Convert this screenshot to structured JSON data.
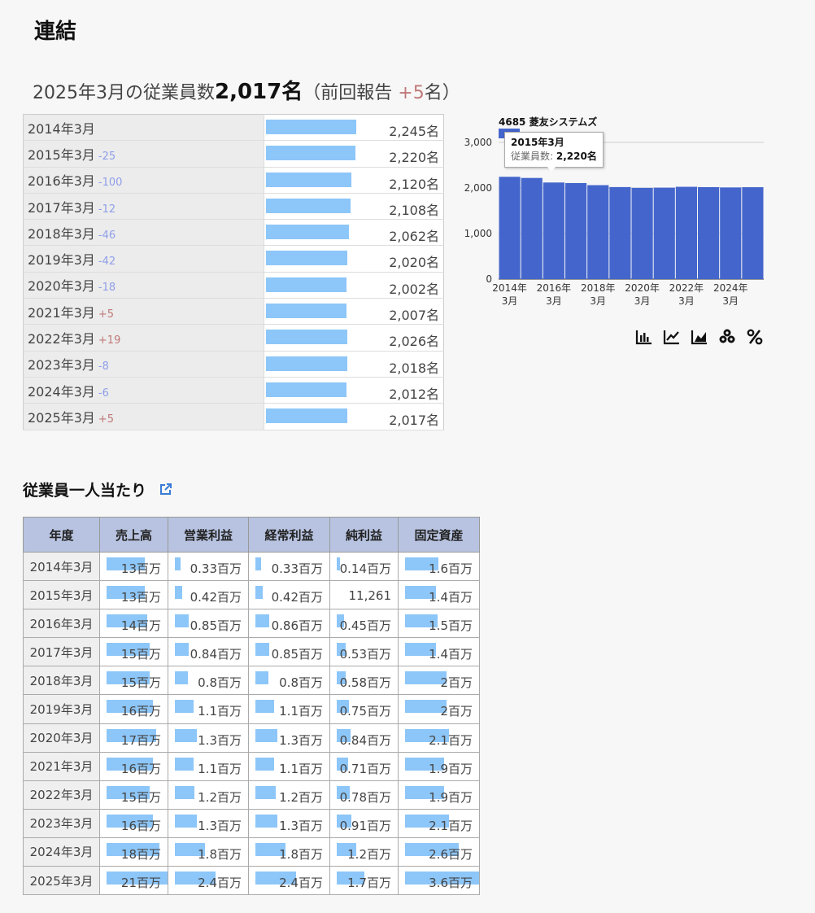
{
  "section_title": "連結",
  "summary": {
    "prefix": "2025年3月の従業員数",
    "count": "2,017名",
    "open": "（前回報告",
    "change": "+5",
    "close": "名）"
  },
  "employees": [
    {
      "year": "2014年3月",
      "change": "",
      "sign": "",
      "value": "2,245名",
      "num": 2245
    },
    {
      "year": "2015年3月",
      "change": "-25",
      "sign": "neg",
      "value": "2,220名",
      "num": 2220
    },
    {
      "year": "2016年3月",
      "change": "-100",
      "sign": "neg",
      "value": "2,120名",
      "num": 2120
    },
    {
      "year": "2017年3月",
      "change": "-12",
      "sign": "neg",
      "value": "2,108名",
      "num": 2108
    },
    {
      "year": "2018年3月",
      "change": "-46",
      "sign": "neg",
      "value": "2,062名",
      "num": 2062
    },
    {
      "year": "2019年3月",
      "change": "-42",
      "sign": "neg",
      "value": "2,020名",
      "num": 2020
    },
    {
      "year": "2020年3月",
      "change": "-18",
      "sign": "neg",
      "value": "2,002名",
      "num": 2002
    },
    {
      "year": "2021年3月",
      "change": "+5",
      "sign": "pos",
      "value": "2,007名",
      "num": 2007
    },
    {
      "year": "2022年3月",
      "change": "+19",
      "sign": "pos",
      "value": "2,026名",
      "num": 2026
    },
    {
      "year": "2023年3月",
      "change": "-8",
      "sign": "neg",
      "value": "2,018名",
      "num": 2018
    },
    {
      "year": "2024年3月",
      "change": "-6",
      "sign": "neg",
      "value": "2,012名",
      "num": 2012
    },
    {
      "year": "2025年3月",
      "change": "+5",
      "sign": "pos",
      "value": "2,017名",
      "num": 2017
    }
  ],
  "chart_data": {
    "type": "bar",
    "title": "4685 菱友システムズ",
    "series": [
      {
        "name": "従業員数",
        "values": [
          2245,
          2220,
          2120,
          2108,
          2062,
          2020,
          2002,
          2007,
          2026,
          2018,
          2012,
          2017
        ]
      }
    ],
    "categories": [
      "2014年3月",
      "2015年3月",
      "2016年3月",
      "2017年3月",
      "2018年3月",
      "2019年3月",
      "2020年3月",
      "2021年3月",
      "2022年3月",
      "2023年3月",
      "2024年3月",
      "2025年3月"
    ],
    "x_tick_labels": [
      [
        "2014年",
        "3月"
      ],
      [
        "2016年",
        "3月"
      ],
      [
        "2018年",
        "3月"
      ],
      [
        "2020年",
        "3月"
      ],
      [
        "2022年",
        "3月"
      ],
      [
        "2024年",
        "3月"
      ]
    ],
    "y_tick_labels": [
      "0",
      "1,000",
      "2,000",
      "3,000"
    ],
    "ylim": [
      0,
      3000
    ],
    "grid": true,
    "color": "#4466cc"
  },
  "tooltip": {
    "title": "2015年3月",
    "label": "従業員数: ",
    "value": "2,220名"
  },
  "chart_icons": [
    "bar-chart-icon",
    "line-chart-icon",
    "area-chart-icon",
    "stacked-icon",
    "percent-icon"
  ],
  "per_employee": {
    "title": "従業員一人当たり",
    "headers": [
      "年度",
      "売上高",
      "営業利益",
      "経常利益",
      "純利益",
      "固定資産"
    ],
    "rows": [
      {
        "year": "2014年3月",
        "cells": [
          "13百万",
          "0.33百万",
          "0.33百万",
          "0.14百万",
          "1.6百万"
        ],
        "bars": [
          0.62,
          0.08,
          0.08,
          0.04,
          0.45
        ]
      },
      {
        "year": "2015年3月",
        "cells": [
          "13百万",
          "0.42百万",
          "0.42百万",
          "11,261",
          "1.4百万"
        ],
        "bars": [
          0.62,
          0.1,
          0.1,
          0,
          0.42
        ]
      },
      {
        "year": "2016年3月",
        "cells": [
          "14百万",
          "0.85百万",
          "0.86百万",
          "0.45百万",
          "1.5百万"
        ],
        "bars": [
          0.67,
          0.19,
          0.19,
          0.12,
          0.44
        ]
      },
      {
        "year": "2017年3月",
        "cells": [
          "15百万",
          "0.84百万",
          "0.85百万",
          "0.53百万",
          "1.4百万"
        ],
        "bars": [
          0.71,
          0.19,
          0.19,
          0.14,
          0.42
        ]
      },
      {
        "year": "2018年3月",
        "cells": [
          "15百万",
          "0.8百万",
          "0.8百万",
          "0.58百万",
          "2百万"
        ],
        "bars": [
          0.71,
          0.18,
          0.18,
          0.15,
          0.56
        ]
      },
      {
        "year": "2019年3月",
        "cells": [
          "16百万",
          "1.1百万",
          "1.1百万",
          "0.75百万",
          "2百万"
        ],
        "bars": [
          0.76,
          0.25,
          0.25,
          0.2,
          0.56
        ]
      },
      {
        "year": "2020年3月",
        "cells": [
          "17百万",
          "1.3百万",
          "1.3百万",
          "0.84百万",
          "2.1百万"
        ],
        "bars": [
          0.81,
          0.3,
          0.3,
          0.22,
          0.59
        ]
      },
      {
        "year": "2021年3月",
        "cells": [
          "16百万",
          "1.1百万",
          "1.1百万",
          "0.71百万",
          "1.9百万"
        ],
        "bars": [
          0.76,
          0.25,
          0.25,
          0.19,
          0.53
        ]
      },
      {
        "year": "2022年3月",
        "cells": [
          "15百万",
          "1.2百万",
          "1.2百万",
          "0.78百万",
          "1.9百万"
        ],
        "bars": [
          0.71,
          0.27,
          0.27,
          0.21,
          0.53
        ]
      },
      {
        "year": "2023年3月",
        "cells": [
          "16百万",
          "1.3百万",
          "1.3百万",
          "0.91百万",
          "2.1百万"
        ],
        "bars": [
          0.76,
          0.3,
          0.3,
          0.24,
          0.59
        ]
      },
      {
        "year": "2024年3月",
        "cells": [
          "18百万",
          "1.8百万",
          "1.8百万",
          "1.2百万",
          "2.6百万"
        ],
        "bars": [
          0.86,
          0.41,
          0.41,
          0.32,
          0.73
        ]
      },
      {
        "year": "2025年3月",
        "cells": [
          "21百万",
          "2.4百万",
          "2.4百万",
          "1.7百万",
          "3.6百万"
        ],
        "bars": [
          1.0,
          0.55,
          0.55,
          0.45,
          1.0
        ]
      }
    ]
  }
}
